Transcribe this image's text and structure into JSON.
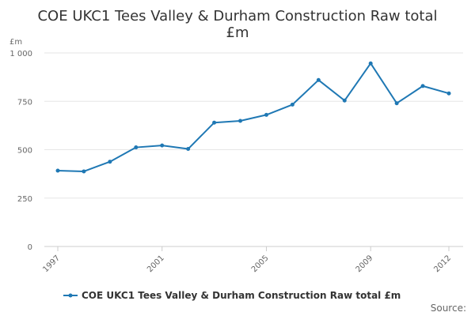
{
  "chart_data": {
    "type": "line",
    "title": "COE UKC1 Tees Valley & Durham Construction Raw total £m",
    "ylabel": "£m",
    "xlabel": "",
    "ylim": [
      0,
      1000
    ],
    "yticks": [
      0,
      250,
      500,
      750,
      1000
    ],
    "ytick_labels": [
      "0",
      "250",
      "500",
      "750",
      "1 000"
    ],
    "x": [
      1997,
      1998,
      1999,
      2000,
      2001,
      2002,
      2003,
      2004,
      2005,
      2006,
      2007,
      2008,
      2009,
      2010,
      2011,
      2012
    ],
    "xlim": [
      1997,
      2012
    ],
    "xtick_labels": [
      "1997",
      "2001",
      "2005",
      "2009",
      "2012"
    ],
    "xtick_values": [
      1997,
      2001,
      2005,
      2009,
      2012
    ],
    "series": [
      {
        "name": "COE UKC1 Tees Valley & Durham Construction Raw total £m",
        "values": [
          392,
          388,
          438,
          512,
          522,
          504,
          640,
          649,
          680,
          733,
          860,
          754,
          946,
          740,
          829,
          791
        ]
      }
    ],
    "grid": "horizontal",
    "legend_position": "bottom",
    "source": "Source:"
  },
  "colors": {
    "series": "#1f78b4",
    "grid": "#e6e6e6",
    "axis": "#cccccc"
  }
}
